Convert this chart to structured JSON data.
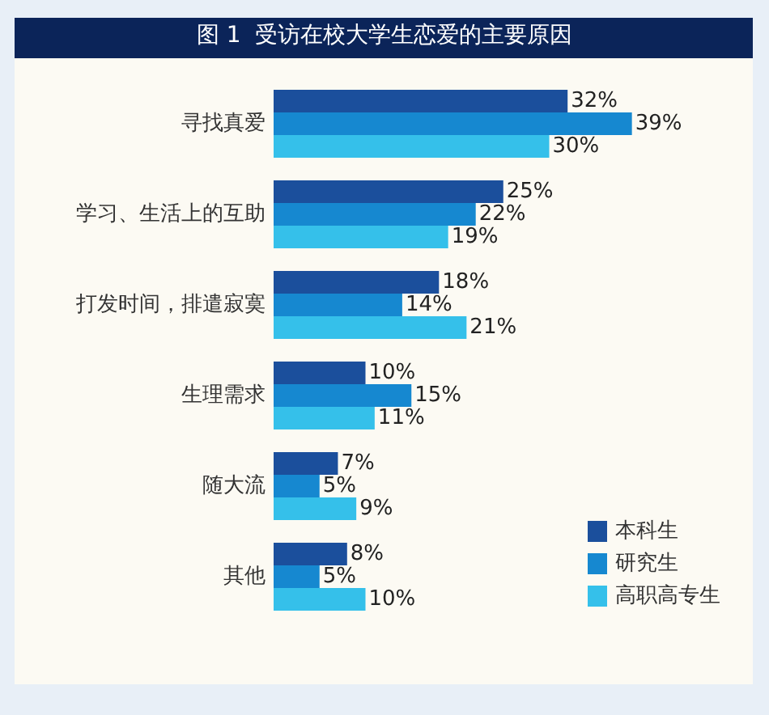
{
  "chart_data": {
    "type": "bar",
    "title": "图 1  受访在校大学生恋爱的主要原因",
    "orientation": "horizontal",
    "categories": [
      "寻找真爱",
      "学习、生活上的互助",
      "打发时间，排遣寂寞",
      "生理需求",
      "随大流",
      "其他"
    ],
    "series": [
      {
        "name": "本科生",
        "color": "#1b4f9c",
        "values": [
          32,
          25,
          18,
          10,
          7,
          8
        ],
        "value_labels": [
          "32%",
          "25%",
          "18%",
          "10%",
          "7%",
          "8%"
        ]
      },
      {
        "name": "研究生",
        "color": "#1688d0",
        "values": [
          39,
          22,
          14,
          15,
          5,
          5
        ],
        "value_labels": [
          "39%",
          "22%",
          "14%",
          "15%",
          "5%",
          "5%"
        ]
      },
      {
        "name": "高职高专生",
        "color": "#35c0ea",
        "values": [
          30,
          19,
          21,
          11,
          9,
          10
        ],
        "value_labels": [
          "30%",
          "19%",
          "21%",
          "11%",
          "9%",
          "10%"
        ]
      }
    ],
    "legend": "bottom right",
    "tick_labels": "y"
  }
}
